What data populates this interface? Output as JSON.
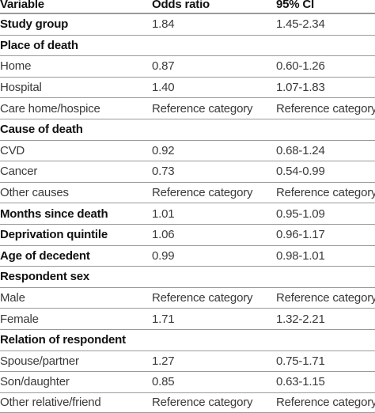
{
  "table": {
    "headers": [
      "Variable",
      "Odds ratio",
      "95% CI"
    ],
    "rows": [
      {
        "variable": "Study group",
        "odds_ratio": "1.84",
        "ci": "1.45-2.34",
        "kind": "bold"
      },
      {
        "variable": "Place of death",
        "odds_ratio": "",
        "ci": "",
        "kind": "bold"
      },
      {
        "variable": "Home",
        "odds_ratio": "0.87",
        "ci": "0.60-1.26",
        "kind": "normal"
      },
      {
        "variable": "Hospital",
        "odds_ratio": "1.40",
        "ci": "1.07-1.83",
        "kind": "normal"
      },
      {
        "variable": "Care home/hospice",
        "odds_ratio": "Reference category",
        "ci": "Reference category",
        "kind": "normal"
      },
      {
        "variable": "Cause of death",
        "odds_ratio": "",
        "ci": "",
        "kind": "bold"
      },
      {
        "variable": "CVD",
        "odds_ratio": "0.92",
        "ci": "0.68-1.24",
        "kind": "normal"
      },
      {
        "variable": "Cancer",
        "odds_ratio": "0.73",
        "ci": "0.54-0.99",
        "kind": "normal"
      },
      {
        "variable": "Other causes",
        "odds_ratio": "Reference category",
        "ci": "Reference category",
        "kind": "normal"
      },
      {
        "variable": "Months since death",
        "odds_ratio": "1.01",
        "ci": "0.95-1.09",
        "kind": "bold"
      },
      {
        "variable": "Deprivation quintile",
        "odds_ratio": "1.06",
        "ci": "0.96-1.17",
        "kind": "bold"
      },
      {
        "variable": "Age of decedent",
        "odds_ratio": "0.99",
        "ci": "0.98-1.01",
        "kind": "bold"
      },
      {
        "variable": "Respondent sex",
        "odds_ratio": "",
        "ci": "",
        "kind": "bold"
      },
      {
        "variable": "Male",
        "odds_ratio": "Reference category",
        "ci": "Reference category",
        "kind": "normal"
      },
      {
        "variable": "Female",
        "odds_ratio": "1.71",
        "ci": "1.32-2.21",
        "kind": "normal"
      },
      {
        "variable": "Relation of respondent",
        "odds_ratio": "",
        "ci": "",
        "kind": "bold"
      },
      {
        "variable": "Spouse/partner",
        "odds_ratio": "1.27",
        "ci": "0.75-1.71",
        "kind": "normal"
      },
      {
        "variable": "Son/daughter",
        "odds_ratio": "0.85",
        "ci": "0.63-1.15",
        "kind": "normal"
      },
      {
        "variable": "Other relative/friend",
        "odds_ratio": "Reference category",
        "ci": "Reference category",
        "kind": "normal"
      }
    ]
  }
}
